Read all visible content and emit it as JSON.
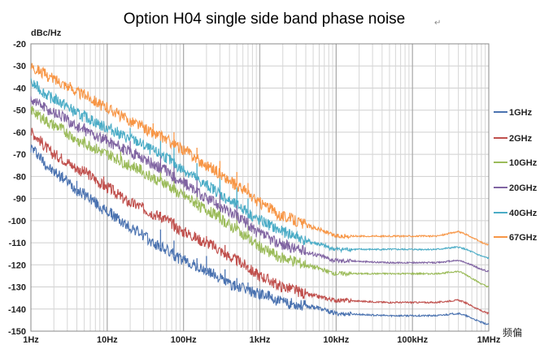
{
  "chart_data": {
    "type": "line",
    "title": "Option H04 single side band phase noise",
    "title_mark": "↵",
    "ylabel": "dBc/Hz",
    "xscale": "log",
    "xlim": [
      1,
      1000000
    ],
    "ylim": [
      -150,
      -20
    ],
    "grid": true,
    "legend_position": "right",
    "corner_label": "频偏",
    "x_ticks": [
      {
        "value": 1,
        "label": "1Hz"
      },
      {
        "value": 10,
        "label": "10Hz"
      },
      {
        "value": 100,
        "label": "100Hz"
      },
      {
        "value": 1000,
        "label": "1kHz"
      },
      {
        "value": 10000,
        "label": "10kHz"
      },
      {
        "value": 100000,
        "label": "100kHz"
      },
      {
        "value": 1000000,
        "label": "1MHz"
      }
    ],
    "y_ticks": [
      "-20",
      "-30",
      "-40",
      "-50",
      "-60",
      "-70",
      "-80",
      "-90",
      "-100",
      "-110",
      "-120",
      "-130",
      "-140",
      "-150"
    ],
    "series": [
      {
        "name": "1GHz",
        "color": "#4a72b0",
        "x": [
          1,
          2,
          5,
          10,
          20,
          50,
          100,
          200,
          500,
          1000,
          2000,
          5000,
          10000,
          50000,
          100000,
          200000,
          400000,
          1000000
        ],
        "y": [
          -67,
          -78,
          -88,
          -96,
          -103,
          -112,
          -118,
          -123,
          -130,
          -133,
          -137,
          -139,
          -142,
          -143,
          -143,
          -143,
          -142,
          -147
        ],
        "spurs": [
          [
            4,
            -82
          ],
          [
            9,
            -93
          ],
          [
            50,
            -104
          ],
          [
            75,
            -109
          ],
          [
            150,
            -117
          ],
          [
            200,
            -116
          ],
          [
            350,
            -122
          ],
          [
            500,
            -126
          ],
          [
            700,
            -128
          ]
        ]
      },
      {
        "name": "2GHz",
        "color": "#c0504d",
        "x": [
          1,
          2,
          5,
          10,
          20,
          50,
          100,
          200,
          500,
          1000,
          2000,
          5000,
          10000,
          50000,
          100000,
          200000,
          400000,
          1000000
        ],
        "y": [
          -60,
          -70,
          -78,
          -85,
          -92,
          -98,
          -105,
          -110,
          -118,
          -125,
          -130,
          -134,
          -136,
          -137,
          -137,
          -137,
          -136,
          -142
        ],
        "spurs": [
          [
            9,
            -80
          ],
          [
            15,
            -87
          ],
          [
            50,
            -96
          ],
          [
            75,
            -99
          ],
          [
            200,
            -107
          ],
          [
            350,
            -111
          ],
          [
            500,
            -116
          ],
          [
            700,
            -120
          ]
        ]
      },
      {
        "name": "10GHz",
        "color": "#9bbb59",
        "x": [
          1,
          2,
          5,
          10,
          20,
          50,
          100,
          200,
          500,
          1000,
          2000,
          5000,
          10000,
          50000,
          100000,
          200000,
          400000,
          1000000
        ],
        "y": [
          -50,
          -57,
          -65,
          -70,
          -75,
          -82,
          -89,
          -95,
          -104,
          -112,
          -117,
          -121,
          -124,
          -124,
          -124,
          -124,
          -123,
          -130
        ],
        "spurs": [
          [
            5,
            -62
          ],
          [
            15,
            -68
          ],
          [
            50,
            -76
          ],
          [
            75,
            -78
          ],
          [
            150,
            -85
          ],
          [
            300,
            -89
          ],
          [
            500,
            -96
          ],
          [
            700,
            -100
          ]
        ]
      },
      {
        "name": "20GHz",
        "color": "#8064a2",
        "x": [
          1,
          2,
          5,
          10,
          20,
          50,
          100,
          200,
          500,
          1000,
          2000,
          5000,
          10000,
          50000,
          100000,
          200000,
          400000,
          1000000
        ],
        "y": [
          -45,
          -51,
          -59,
          -64,
          -69,
          -76,
          -83,
          -90,
          -98,
          -106,
          -111,
          -115,
          -118,
          -119,
          -119,
          -119,
          -118,
          -123
        ],
        "spurs": [
          [
            5,
            -56
          ],
          [
            20,
            -64
          ],
          [
            50,
            -69
          ],
          [
            75,
            -72
          ],
          [
            150,
            -79
          ],
          [
            300,
            -84
          ],
          [
            500,
            -91
          ],
          [
            700,
            -95
          ]
        ]
      },
      {
        "name": "40GHz",
        "color": "#4bacc6",
        "x": [
          1,
          2,
          5,
          10,
          20,
          50,
          100,
          200,
          500,
          1000,
          2000,
          5000,
          10000,
          50000,
          100000,
          200000,
          400000,
          1000000
        ],
        "y": [
          -38,
          -45,
          -53,
          -58,
          -63,
          -70,
          -77,
          -84,
          -93,
          -100,
          -105,
          -110,
          -113,
          -113,
          -113,
          -113,
          -112,
          -117
        ],
        "spurs": [
          [
            5,
            -50
          ],
          [
            20,
            -58
          ],
          [
            50,
            -63
          ],
          [
            75,
            -66
          ],
          [
            150,
            -74
          ],
          [
            300,
            -79
          ],
          [
            500,
            -85
          ],
          [
            700,
            -90
          ]
        ]
      },
      {
        "name": "67GHz",
        "color": "#f79646",
        "x": [
          1,
          2,
          5,
          10,
          20,
          50,
          100,
          200,
          500,
          1000,
          2000,
          5000,
          10000,
          50000,
          100000,
          200000,
          400000,
          1000000
        ],
        "y": [
          -30,
          -36,
          -43,
          -49,
          -55,
          -62,
          -68,
          -75,
          -84,
          -92,
          -98,
          -103,
          -107,
          -107,
          -107,
          -107,
          -105,
          -111
        ],
        "spurs": [
          [
            40,
            -56
          ],
          [
            50,
            -60
          ],
          [
            75,
            -60
          ],
          [
            150,
            -67
          ],
          [
            300,
            -73
          ],
          [
            500,
            -78
          ],
          [
            700,
            -83
          ]
        ]
      }
    ]
  }
}
